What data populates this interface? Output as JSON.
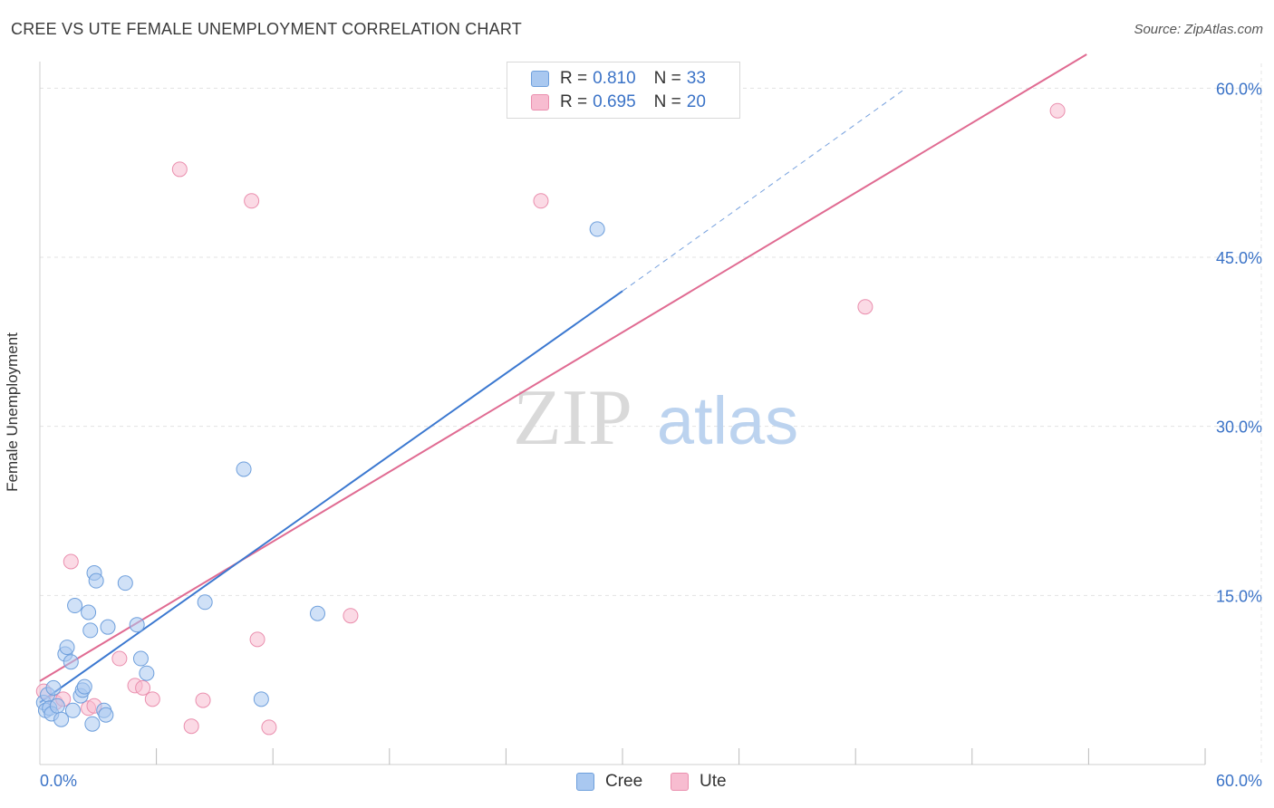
{
  "title": "CREE VS UTE FEMALE UNEMPLOYMENT CORRELATION CHART",
  "source": "Source: ZipAtlas.com",
  "watermark": {
    "zip": "ZIP",
    "atlas": "atlas"
  },
  "legend": {
    "cree": {
      "r_label": "R =",
      "r_value": "0.810",
      "n_label": "N =",
      "n_value": "33"
    },
    "ute": {
      "r_label": "R =",
      "r_value": "0.695",
      "n_label": "N =",
      "n_value": "20"
    }
  },
  "colors": {
    "cree_fill": "#a9c8f0",
    "cree_stroke": "#6e9fdc",
    "cree_line": "#3b78d0",
    "ute_fill": "#f7bcd0",
    "ute_stroke": "#ea8fae",
    "ute_line": "#e06b92",
    "tick_label": "#3b73c7"
  },
  "chart_data": {
    "type": "scatter",
    "title": "CREE VS UTE FEMALE UNEMPLOYMENT CORRELATION CHART",
    "xlabel": "",
    "ylabel": "Female Unemployment",
    "xlim": [
      0,
      60
    ],
    "ylim": [
      0,
      63
    ],
    "x_tick_labels": [
      "0.0%",
      "60.0%"
    ],
    "y_ticks": [
      15,
      30,
      45,
      60
    ],
    "y_tick_labels": [
      "15.0%",
      "30.0%",
      "45.0%",
      "60.0%"
    ],
    "grid": true,
    "legend_position": "top-center",
    "series": [
      {
        "name": "Cree",
        "points": [
          [
            0.2,
            5.5
          ],
          [
            0.3,
            4.8
          ],
          [
            0.4,
            6.2
          ],
          [
            0.5,
            5.0
          ],
          [
            0.6,
            4.5
          ],
          [
            0.7,
            6.8
          ],
          [
            0.9,
            5.2
          ],
          [
            1.1,
            4.0
          ],
          [
            1.3,
            9.8
          ],
          [
            1.4,
            10.4
          ],
          [
            1.6,
            9.1
          ],
          [
            1.7,
            4.8
          ],
          [
            1.8,
            14.1
          ],
          [
            2.1,
            6.1
          ],
          [
            2.2,
            6.6
          ],
          [
            2.3,
            6.9
          ],
          [
            2.5,
            13.5
          ],
          [
            2.6,
            11.9
          ],
          [
            2.7,
            3.6
          ],
          [
            2.8,
            17.0
          ],
          [
            2.9,
            16.3
          ],
          [
            3.3,
            4.8
          ],
          [
            3.4,
            4.4
          ],
          [
            3.5,
            12.2
          ],
          [
            4.4,
            16.1
          ],
          [
            5.0,
            12.4
          ],
          [
            5.2,
            9.4
          ],
          [
            5.5,
            8.1
          ],
          [
            8.5,
            14.4
          ],
          [
            10.5,
            26.2
          ],
          [
            11.4,
            5.8
          ],
          [
            14.3,
            13.4
          ],
          [
            28.7,
            47.5
          ]
        ],
        "trend": {
          "x1": 0,
          "y1": 5.5,
          "x2": 30,
          "y2": 42.0,
          "x2_dashed": 44.6,
          "y2_dashed": 60.0
        }
      },
      {
        "name": "Ute",
        "points": [
          [
            0.2,
            6.5
          ],
          [
            0.8,
            5.5
          ],
          [
            1.2,
            5.8
          ],
          [
            1.6,
            18.0
          ],
          [
            2.5,
            5.0
          ],
          [
            2.8,
            5.2
          ],
          [
            4.1,
            9.4
          ],
          [
            4.9,
            7.0
          ],
          [
            5.3,
            6.8
          ],
          [
            5.8,
            5.8
          ],
          [
            7.2,
            52.8
          ],
          [
            7.8,
            3.4
          ],
          [
            8.4,
            5.7
          ],
          [
            10.9,
            50.0
          ],
          [
            11.2,
            11.1
          ],
          [
            11.8,
            3.3
          ],
          [
            16.0,
            13.2
          ],
          [
            25.8,
            50.0
          ],
          [
            42.5,
            40.6
          ],
          [
            52.4,
            58.0
          ]
        ],
        "trend": {
          "x1": 0,
          "y1": 7.4,
          "x2": 53.9,
          "y2": 63.0
        }
      }
    ]
  }
}
